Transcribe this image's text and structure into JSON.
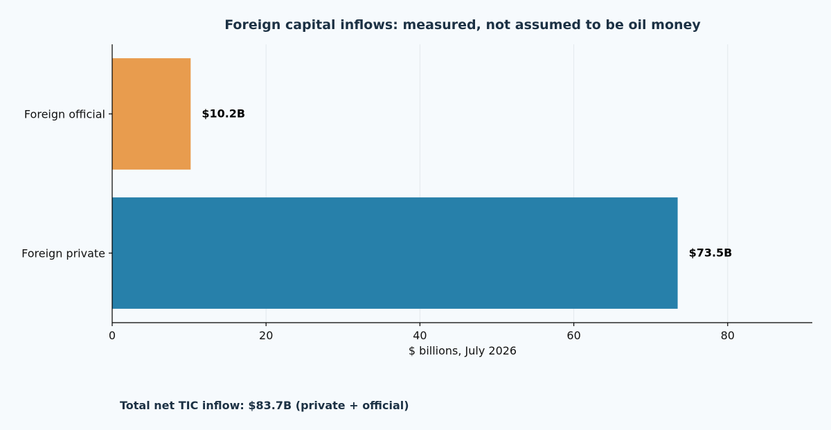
{
  "chart_data": {
    "type": "bar",
    "orientation": "horizontal",
    "title": "Foreign capital inflows: measured, not assumed to be oil money",
    "xlabel": "$ billions, July 2026",
    "ylabel": "",
    "xlim": [
      0,
      91
    ],
    "xticks": [
      0,
      20,
      40,
      60,
      80
    ],
    "grid": "vertical",
    "categories": [
      "Foreign official",
      "Foreign private"
    ],
    "values": [
      10.2,
      73.5
    ],
    "value_labels": [
      "$10.2B",
      "$73.5B"
    ],
    "colors": [
      "#e89c4e",
      "#2780aa"
    ],
    "footnote": "Total net TIC inflow: $83.7B (private + official)"
  }
}
